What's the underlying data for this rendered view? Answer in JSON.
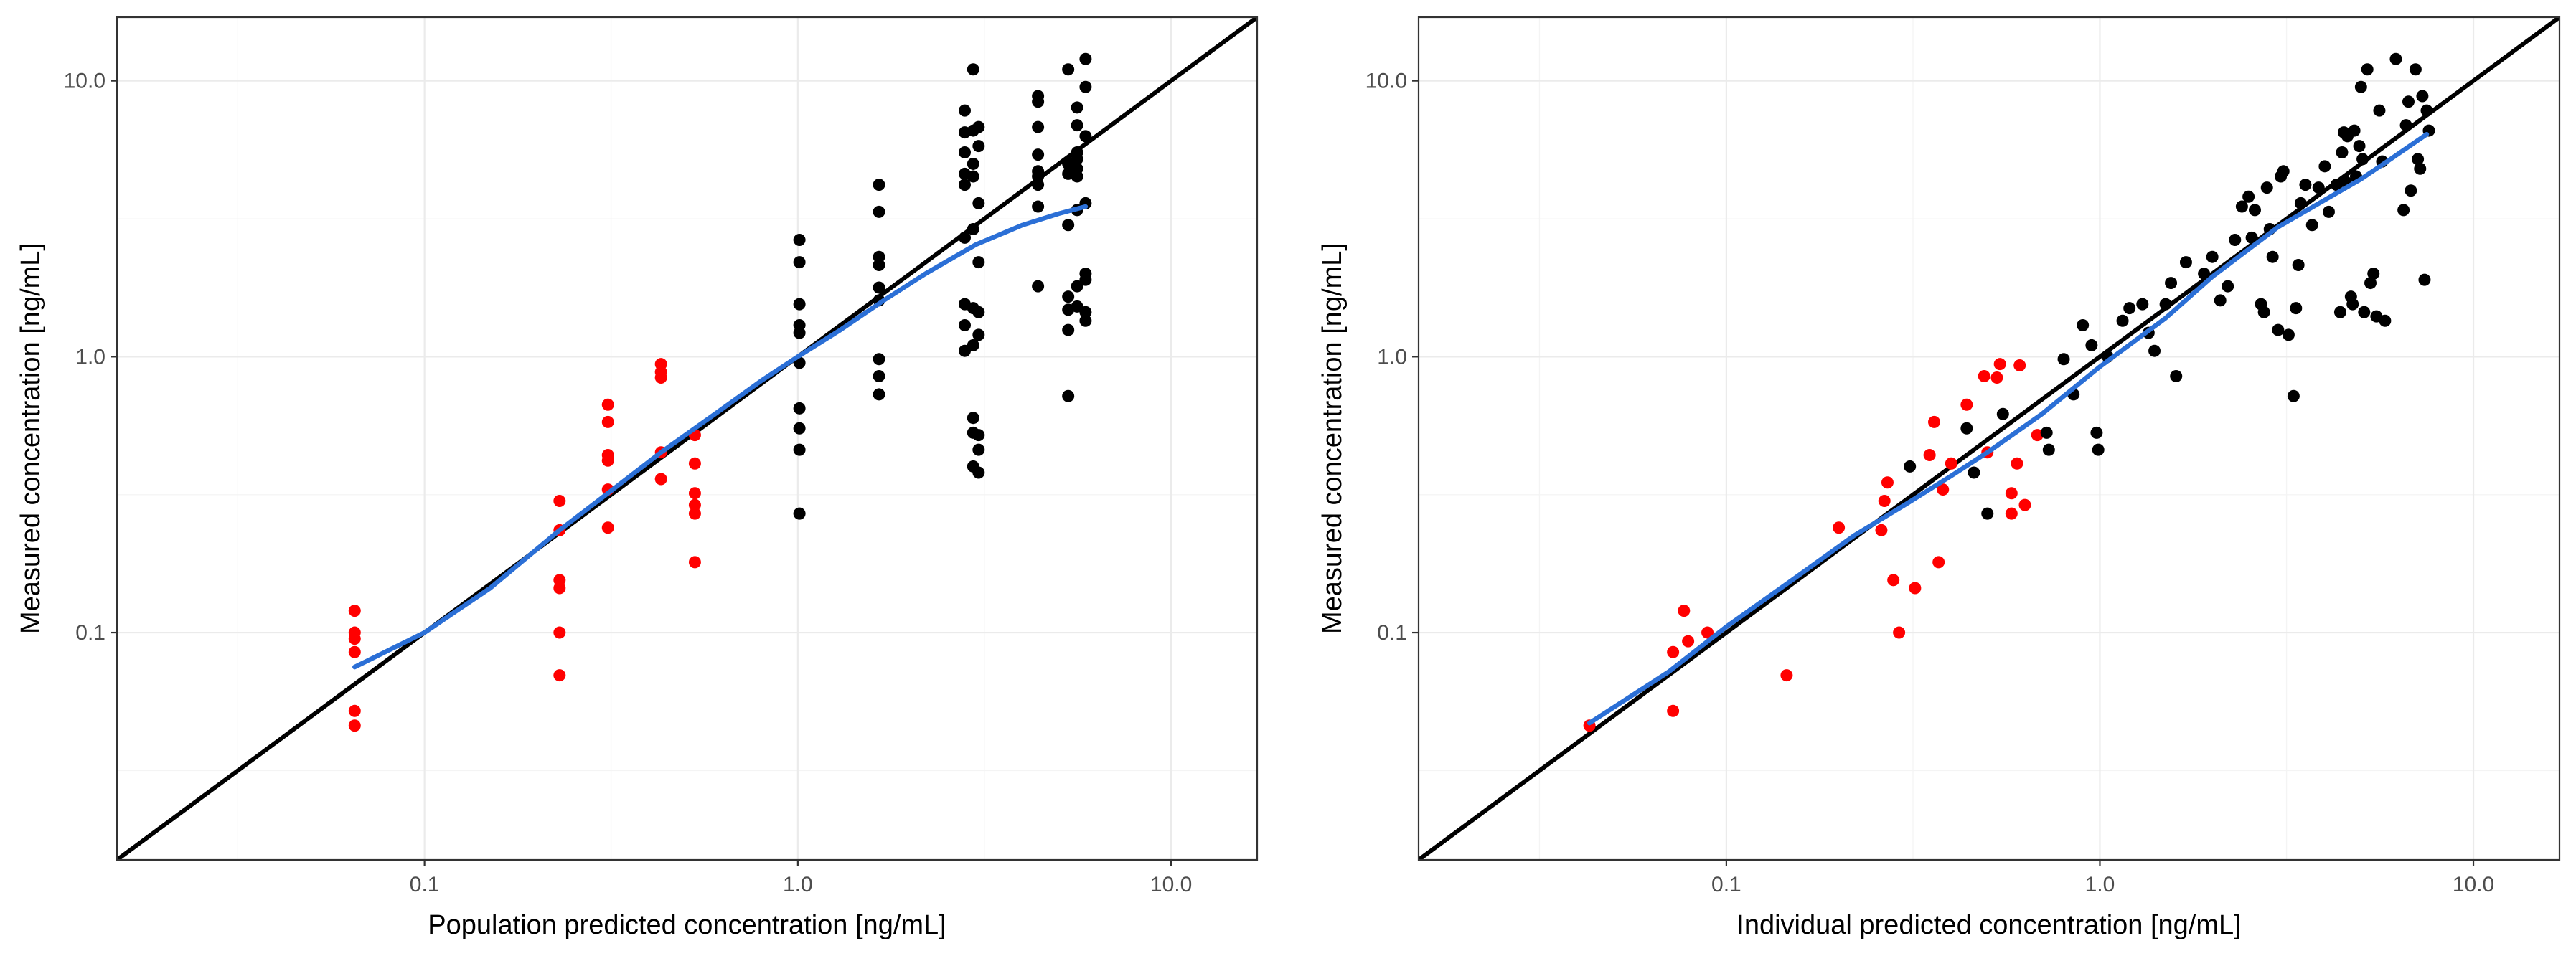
{
  "chart_data": [
    {
      "type": "scatter",
      "scale": "log10",
      "xlabel": "Population predicted concentration [ng/mL]",
      "ylabel": "Measured concentration [ng/mL]",
      "xlim": [
        0.015,
        17
      ],
      "ylim": [
        0.015,
        17
      ],
      "x_ticks": [
        0.1,
        1.0,
        10.0
      ],
      "x_tick_labels": [
        "0.1",
        "1.0",
        "10.0"
      ],
      "y_ticks": [
        0.1,
        1.0,
        10.0
      ],
      "y_tick_labels": [
        "0.1",
        "1.0",
        "10.0"
      ],
      "identity_line": true,
      "colors": {
        "below_loq": "#ff0000",
        "observed": "#000000",
        "smooth": "#2b6fd6",
        "identity": "#000000"
      },
      "series": [
        {
          "name": "below_loq",
          "color": "#ff0000",
          "points": [
            [
              0.065,
              0.12
            ],
            [
              0.065,
              0.1
            ],
            [
              0.065,
              0.095
            ],
            [
              0.065,
              0.085
            ],
            [
              0.065,
              0.052
            ],
            [
              0.065,
              0.046
            ],
            [
              0.23,
              0.3
            ],
            [
              0.23,
              0.235
            ],
            [
              0.23,
              0.155
            ],
            [
              0.23,
              0.145
            ],
            [
              0.23,
              0.1
            ],
            [
              0.23,
              0.07
            ],
            [
              0.31,
              0.67
            ],
            [
              0.31,
              0.58
            ],
            [
              0.31,
              0.44
            ],
            [
              0.31,
              0.42
            ],
            [
              0.31,
              0.33
            ],
            [
              0.31,
              0.24
            ],
            [
              0.43,
              0.94
            ],
            [
              0.43,
              0.88
            ],
            [
              0.43,
              0.84
            ],
            [
              0.43,
              0.45
            ],
            [
              0.43,
              0.36
            ],
            [
              0.53,
              0.52
            ],
            [
              0.53,
              0.41
            ],
            [
              0.53,
              0.32
            ],
            [
              0.53,
              0.29
            ],
            [
              0.53,
              0.27
            ],
            [
              0.53,
              0.18
            ]
          ]
        },
        {
          "name": "observed",
          "color": "#000000",
          "points": [
            [
              1.01,
              2.65
            ],
            [
              1.01,
              2.2
            ],
            [
              1.01,
              1.55
            ],
            [
              1.01,
              1.3
            ],
            [
              1.01,
              1.22
            ],
            [
              1.01,
              0.95
            ],
            [
              1.01,
              0.65
            ],
            [
              1.01,
              0.55
            ],
            [
              1.01,
              0.46
            ],
            [
              1.01,
              0.27
            ],
            [
              1.65,
              4.2
            ],
            [
              1.65,
              3.35
            ],
            [
              1.65,
              2.3
            ],
            [
              1.65,
              2.15
            ],
            [
              1.65,
              1.78
            ],
            [
              1.65,
              1.6
            ],
            [
              1.65,
              0.98
            ],
            [
              1.65,
              0.85
            ],
            [
              1.65,
              0.73
            ],
            [
              2.8,
              7.8
            ],
            [
              2.8,
              6.5
            ],
            [
              2.8,
              5.5
            ],
            [
              2.8,
              4.6
            ],
            [
              2.8,
              4.2
            ],
            [
              2.8,
              2.7
            ],
            [
              2.8,
              1.55
            ],
            [
              2.8,
              1.3
            ],
            [
              2.8,
              1.05
            ],
            [
              2.95,
              11.0
            ],
            [
              2.95,
              6.6
            ],
            [
              2.95,
              5.0
            ],
            [
              2.95,
              4.5
            ],
            [
              2.95,
              2.9
            ],
            [
              2.95,
              1.5
            ],
            [
              2.95,
              1.1
            ],
            [
              2.95,
              0.6
            ],
            [
              2.95,
              0.53
            ],
            [
              2.95,
              0.4
            ],
            [
              3.05,
              6.8
            ],
            [
              3.05,
              5.8
            ],
            [
              3.05,
              3.6
            ],
            [
              3.05,
              2.2
            ],
            [
              3.05,
              1.45
            ],
            [
              3.05,
              1.2
            ],
            [
              3.05,
              0.52
            ],
            [
              3.05,
              0.46
            ],
            [
              3.05,
              0.38
            ],
            [
              4.4,
              8.8
            ],
            [
              4.4,
              8.4
            ],
            [
              4.4,
              6.8
            ],
            [
              4.4,
              5.4
            ],
            [
              4.4,
              4.7
            ],
            [
              4.4,
              4.5
            ],
            [
              4.4,
              4.2
            ],
            [
              4.4,
              3.5
            ],
            [
              4.4,
              1.8
            ],
            [
              5.3,
              11.0
            ],
            [
              5.3,
              5.0
            ],
            [
              5.3,
              4.6
            ],
            [
              5.3,
              3.0
            ],
            [
              5.3,
              1.65
            ],
            [
              5.3,
              1.48
            ],
            [
              5.3,
              1.25
            ],
            [
              5.3,
              0.72
            ],
            [
              5.6,
              8.0
            ],
            [
              5.6,
              6.9
            ],
            [
              5.6,
              5.5
            ],
            [
              5.6,
              5.2
            ],
            [
              5.6,
              4.8
            ],
            [
              5.6,
              4.5
            ],
            [
              5.6,
              3.4
            ],
            [
              5.6,
              1.8
            ],
            [
              5.6,
              1.52
            ],
            [
              5.9,
              12.0
            ],
            [
              5.9,
              9.5
            ],
            [
              5.9,
              6.3
            ],
            [
              5.9,
              3.6
            ],
            [
              5.9,
              2.0
            ],
            [
              5.9,
              1.9
            ],
            [
              5.9,
              1.45
            ],
            [
              5.9,
              1.35
            ]
          ]
        }
      ],
      "smooth": {
        "name": "loess",
        "color": "#2b6fd6",
        "points": [
          [
            0.065,
            0.075
          ],
          [
            0.1,
            0.1
          ],
          [
            0.15,
            0.145
          ],
          [
            0.23,
            0.235
          ],
          [
            0.31,
            0.32
          ],
          [
            0.43,
            0.45
          ],
          [
            0.6,
            0.62
          ],
          [
            0.8,
            0.82
          ],
          [
            1.0,
            1.0
          ],
          [
            1.3,
            1.25
          ],
          [
            1.7,
            1.6
          ],
          [
            2.2,
            2.0
          ],
          [
            3.0,
            2.55
          ],
          [
            4.0,
            3.0
          ],
          [
            5.0,
            3.3
          ],
          [
            5.9,
            3.5
          ]
        ]
      }
    },
    {
      "type": "scatter",
      "scale": "log10",
      "xlabel": "Individual predicted concentration [ng/mL]",
      "ylabel": "Measured concentration [ng/mL]",
      "xlim": [
        0.015,
        17
      ],
      "ylim": [
        0.015,
        17
      ],
      "x_ticks": [
        0.1,
        1.0,
        10.0
      ],
      "x_tick_labels": [
        "0.1",
        "1.0",
        "10.0"
      ],
      "y_ticks": [
        0.1,
        1.0,
        10.0
      ],
      "y_tick_labels": [
        "0.1",
        "1.0",
        "10.0"
      ],
      "identity_line": true,
      "colors": {
        "below_loq": "#ff0000",
        "observed": "#000000",
        "smooth": "#2b6fd6",
        "identity": "#000000"
      },
      "series": [
        {
          "name": "below_loq",
          "color": "#ff0000",
          "points": [
            [
              0.043,
              0.046
            ],
            [
              0.072,
              0.052
            ],
            [
              0.072,
              0.085
            ],
            [
              0.077,
              0.12
            ],
            [
              0.079,
              0.093
            ],
            [
              0.089,
              0.1
            ],
            [
              0.145,
              0.07
            ],
            [
              0.2,
              0.24
            ],
            [
              0.26,
              0.235
            ],
            [
              0.265,
              0.3
            ],
            [
              0.27,
              0.35
            ],
            [
              0.28,
              0.155
            ],
            [
              0.29,
              0.1
            ],
            [
              0.32,
              0.145
            ],
            [
              0.35,
              0.44
            ],
            [
              0.36,
              0.58
            ],
            [
              0.37,
              0.18
            ],
            [
              0.38,
              0.33
            ],
            [
              0.4,
              0.41
            ],
            [
              0.44,
              0.67
            ],
            [
              0.49,
              0.85
            ],
            [
              0.5,
              0.45
            ],
            [
              0.53,
              0.84
            ],
            [
              0.54,
              0.94
            ],
            [
              0.58,
              0.27
            ],
            [
              0.58,
              0.32
            ],
            [
              0.6,
              0.41
            ],
            [
              0.61,
              0.93
            ],
            [
              0.63,
              0.29
            ],
            [
              0.68,
              0.52
            ]
          ]
        },
        {
          "name": "observed",
          "color": "#000000",
          "points": [
            [
              0.31,
              0.4
            ],
            [
              0.44,
              0.55
            ],
            [
              0.46,
              0.38
            ],
            [
              0.5,
              0.27
            ],
            [
              0.55,
              0.62
            ],
            [
              0.72,
              0.53
            ],
            [
              0.73,
              0.46
            ],
            [
              0.8,
              0.98
            ],
            [
              0.85,
              0.73
            ],
            [
              0.9,
              1.3
            ],
            [
              0.95,
              1.1
            ],
            [
              0.98,
              0.53
            ],
            [
              0.99,
              0.46
            ],
            [
              1.05,
              1.0
            ],
            [
              1.15,
              1.35
            ],
            [
              1.2,
              1.5
            ],
            [
              1.3,
              1.55
            ],
            [
              1.35,
              1.22
            ],
            [
              1.4,
              1.05
            ],
            [
              1.5,
              1.55
            ],
            [
              1.55,
              1.85
            ],
            [
              1.6,
              0.85
            ],
            [
              1.7,
              2.2
            ],
            [
              1.9,
              2.0
            ],
            [
              2.0,
              2.3
            ],
            [
              2.1,
              1.6
            ],
            [
              2.2,
              1.8
            ],
            [
              2.3,
              2.65
            ],
            [
              2.4,
              3.5
            ],
            [
              2.5,
              3.8
            ],
            [
              2.55,
              2.7
            ],
            [
              2.6,
              3.4
            ],
            [
              2.7,
              1.55
            ],
            [
              2.75,
              1.45
            ],
            [
              2.8,
              4.1
            ],
            [
              2.85,
              2.9
            ],
            [
              2.9,
              2.3
            ],
            [
              3.0,
              1.25
            ],
            [
              3.05,
              4.5
            ],
            [
              3.1,
              4.7
            ],
            [
              3.2,
              1.2
            ],
            [
              3.3,
              0.72
            ],
            [
              3.35,
              1.5
            ],
            [
              3.4,
              2.15
            ],
            [
              3.45,
              3.6
            ],
            [
              3.55,
              4.2
            ],
            [
              3.7,
              3.0
            ],
            [
              3.85,
              4.1
            ],
            [
              4.0,
              4.9
            ],
            [
              4.1,
              3.35
            ],
            [
              4.3,
              4.2
            ],
            [
              4.4,
              1.45
            ],
            [
              4.45,
              5.5
            ],
            [
              4.5,
              6.5
            ],
            [
              4.55,
              4.3
            ],
            [
              4.6,
              6.3
            ],
            [
              4.7,
              1.65
            ],
            [
              4.75,
              1.55
            ],
            [
              4.8,
              6.6
            ],
            [
              4.85,
              4.5
            ],
            [
              4.95,
              5.8
            ],
            [
              5.0,
              9.5
            ],
            [
              5.05,
              5.2
            ],
            [
              5.1,
              1.45
            ],
            [
              5.2,
              11.0
            ],
            [
              5.3,
              1.85
            ],
            [
              5.4,
              2.0
            ],
            [
              5.5,
              1.4
            ],
            [
              5.6,
              7.8
            ],
            [
              5.7,
              5.1
            ],
            [
              5.8,
              1.35
            ],
            [
              6.2,
              12.0
            ],
            [
              6.5,
              3.4
            ],
            [
              6.6,
              6.9
            ],
            [
              6.7,
              8.4
            ],
            [
              6.8,
              4.0
            ],
            [
              7.0,
              11.0
            ],
            [
              7.1,
              5.2
            ],
            [
              7.2,
              4.8
            ],
            [
              7.3,
              8.8
            ],
            [
              7.4,
              1.9
            ],
            [
              7.5,
              7.8
            ],
            [
              7.6,
              6.6
            ]
          ]
        }
      ],
      "smooth": {
        "name": "loess",
        "color": "#2b6fd6",
        "points": [
          [
            0.043,
            0.047
          ],
          [
            0.07,
            0.072
          ],
          [
            0.1,
            0.105
          ],
          [
            0.15,
            0.155
          ],
          [
            0.22,
            0.225
          ],
          [
            0.3,
            0.29
          ],
          [
            0.4,
            0.37
          ],
          [
            0.5,
            0.45
          ],
          [
            0.7,
            0.62
          ],
          [
            1.0,
            0.92
          ],
          [
            1.5,
            1.38
          ],
          [
            2.0,
            1.95
          ],
          [
            3.0,
            2.95
          ],
          [
            4.0,
            3.7
          ],
          [
            5.0,
            4.4
          ],
          [
            6.0,
            5.2
          ],
          [
            7.5,
            6.4
          ]
        ]
      }
    }
  ]
}
